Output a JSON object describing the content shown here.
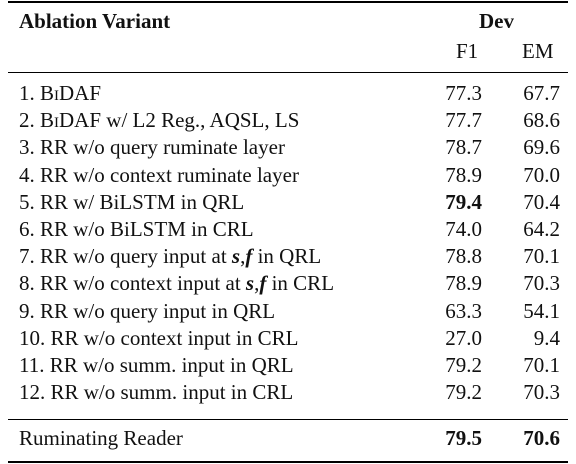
{
  "header": {
    "variant": "Ablation Variant",
    "dev": "Dev",
    "f1": "F1",
    "em": "EM"
  },
  "rows": [
    {
      "num": "1.",
      "label": "BiDAF",
      "f1": "77.3",
      "em": "67.7"
    },
    {
      "num": "2.",
      "label": "BiDAF w/ L2 Reg., AQSL, LS",
      "f1": "77.7",
      "em": "68.6"
    },
    {
      "num": "3.",
      "label": "RR w/o query ruminate layer",
      "f1": "78.7",
      "em": "69.6"
    },
    {
      "num": "4.",
      "label": "RR w/o context ruminate layer",
      "f1": "78.9",
      "em": "70.0"
    },
    {
      "num": "5.",
      "label": "RR w/ BiLSTM in QRL",
      "f1": "79.4",
      "em": "70.4"
    },
    {
      "num": "6.",
      "label": "RR w/o BiLSTM in CRL",
      "f1": "74.0",
      "em": "64.2"
    },
    {
      "num": "7.",
      "label": "RR w/o query input at s, f in QRL",
      "f1": "78.8",
      "em": "70.1"
    },
    {
      "num": "8.",
      "label": "RR w/o context input at s, f in CRL",
      "f1": "78.9",
      "em": "70.3"
    },
    {
      "num": "9.",
      "label": "RR w/o query input in QRL",
      "f1": "63.3",
      "em": "54.1"
    },
    {
      "num": "10.",
      "label": "RR w/o context input in CRL",
      "f1": "27.0",
      "em": "9.4"
    },
    {
      "num": "11.",
      "label": "RR w/o summ. input in QRL",
      "f1": "79.2",
      "em": "70.1"
    },
    {
      "num": "12.",
      "label": "RR w/o summ. input in CRL",
      "f1": "79.2",
      "em": "70.3"
    }
  ],
  "final": {
    "label": "Ruminating Reader",
    "f1": "79.5",
    "em": "70.6"
  }
}
